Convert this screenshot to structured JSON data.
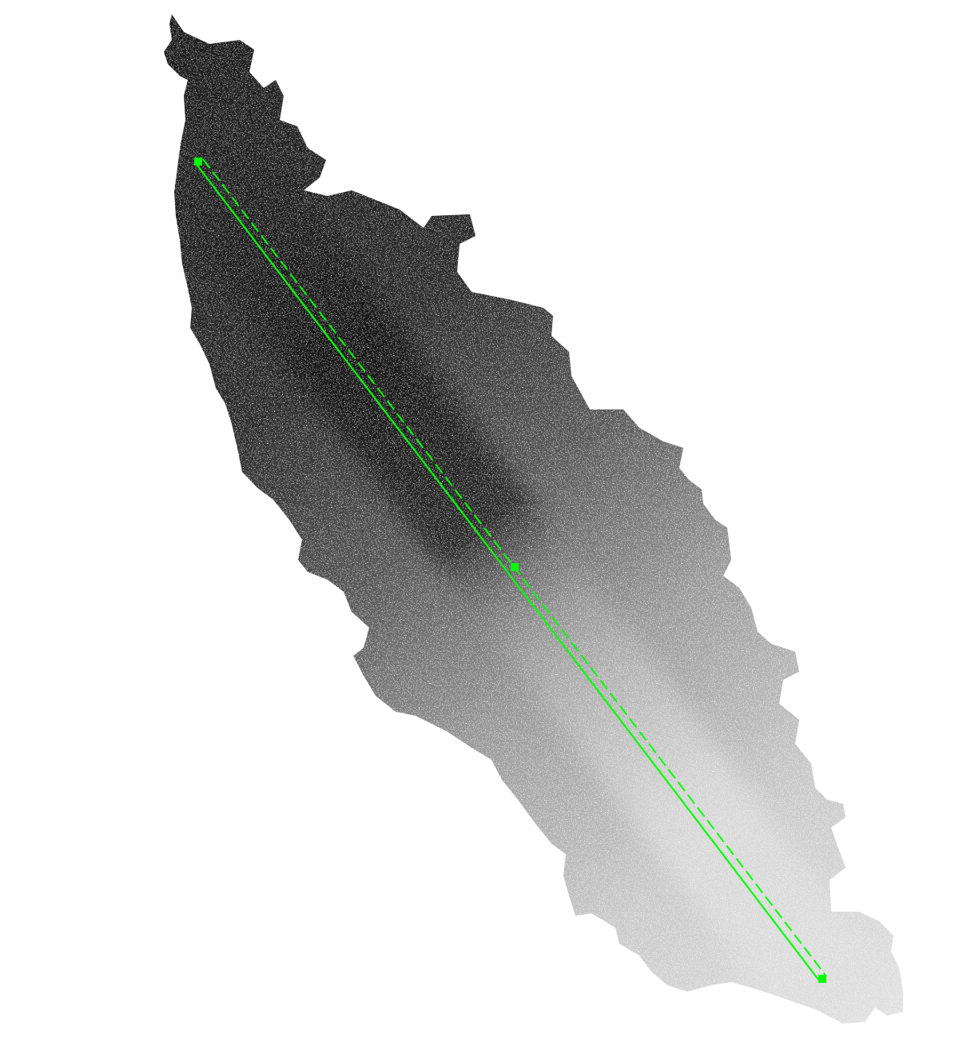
{
  "colors": {
    "background": "#ffffff",
    "roi_line": "#00ff00",
    "handle": "#00ff00",
    "mask_dark": "#202020",
    "mask_mid": "#7a7a7a",
    "mask_light": "#d8d8d8"
  },
  "overlay": {
    "tool": "line-roi",
    "line_style": [
      "solid",
      "dashed"
    ],
    "handles": [
      "start-handle",
      "center-handle",
      "end-handle"
    ]
  },
  "icons": {
    "handle": "square-handle-icon"
  }
}
